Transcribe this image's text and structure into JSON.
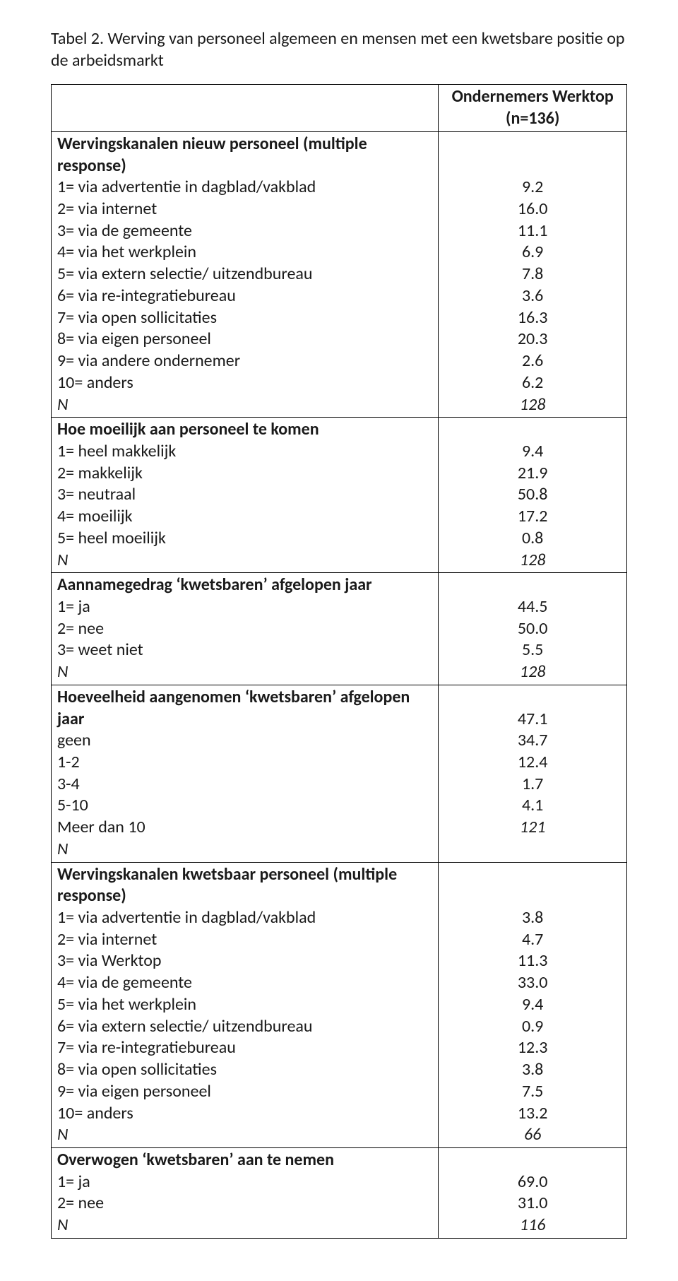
{
  "title": "Tabel 2. Werving van personeel algemeen en mensen met een kwetsbare positie op de arbeidsmarkt",
  "headerRight": "Ondernemers Werktop (n=136)",
  "sections": [
    {
      "head": "Wervingskanalen nieuw personeel (multiple response)",
      "rows": [
        {
          "label": "1= via advertentie in dagblad/vakblad",
          "value": "9.2"
        },
        {
          "label": "2= via internet",
          "value": "16.0"
        },
        {
          "label": "3= via de gemeente",
          "value": "11.1"
        },
        {
          "label": "4= via het werkplein",
          "value": "6.9"
        },
        {
          "label": "5= via extern selectie/ uitzendbureau",
          "value": "7.8"
        },
        {
          "label": "6= via re-integratiebureau",
          "value": "3.6"
        },
        {
          "label": "7= via open sollicitaties",
          "value": "16.3"
        },
        {
          "label": "8= via eigen personeel",
          "value": "20.3"
        },
        {
          "label": "9= via andere ondernemer",
          "value": "2.6"
        },
        {
          "label": "10= anders",
          "value": "6.2"
        },
        {
          "label": "N",
          "value": "128",
          "italic": true
        }
      ]
    },
    {
      "head": "Hoe moeilijk aan personeel te komen",
      "rows": [
        {
          "label": "1= heel makkelijk",
          "value": "9.4"
        },
        {
          "label": "2= makkelijk",
          "value": "21.9"
        },
        {
          "label": "3= neutraal",
          "value": "50.8"
        },
        {
          "label": "4= moeilijk",
          "value": "17.2"
        },
        {
          "label": "5= heel moeilijk",
          "value": "0.8"
        },
        {
          "label": "N",
          "value": "128",
          "italic": true
        }
      ]
    },
    {
      "head": "Aannamegedrag ‘kwetsbaren’ afgelopen jaar",
      "rows": [
        {
          "label": "1= ja",
          "value": "44.5"
        },
        {
          "label": "2= nee",
          "value": "50.0"
        },
        {
          "label": "3= weet niet",
          "value": "5.5"
        },
        {
          "label": "N",
          "value": "128",
          "italic": true
        }
      ]
    },
    {
      "head": "Hoeveelheid aangenomen ‘kwetsbaren’ afgelopen jaar",
      "rows": [
        {
          "label": "geen",
          "value": "47.1"
        },
        {
          "label": "1-2",
          "value": "34.7"
        },
        {
          "label": "3-4",
          "value": "12.4"
        },
        {
          "label": "5-10",
          "value": "1.7"
        },
        {
          "label": "Meer dan 10",
          "value": "4.1"
        },
        {
          "label": "N",
          "value": "121",
          "italic": true
        }
      ]
    },
    {
      "head": "Wervingskanalen kwetsbaar personeel (multiple response)",
      "rows": [
        {
          "label": "1= via advertentie in dagblad/vakblad",
          "value": "3.8"
        },
        {
          "label": "2= via internet",
          "value": "4.7"
        },
        {
          "label": "3= via Werktop",
          "value": "11.3"
        },
        {
          "label": "4= via de gemeente",
          "value": "33.0"
        },
        {
          "label": "5= via het werkplein",
          "value": "9.4"
        },
        {
          "label": "6= via extern selectie/ uitzendbureau",
          "value": "0.9"
        },
        {
          "label": "7= via re-integratiebureau",
          "value": "12.3"
        },
        {
          "label": "8= via open sollicitaties",
          "value": "3.8"
        },
        {
          "label": "9= via eigen personeel",
          "value": "7.5"
        },
        {
          "label": "10= anders",
          "value": "13.2"
        },
        {
          "label": "N",
          "value": "66",
          "italic": true
        }
      ]
    },
    {
      "head": "Overwogen ‘kwetsbaren’ aan te nemen",
      "rows": [
        {
          "label": "1= ja",
          "value": "69.0"
        },
        {
          "label": "2= nee",
          "value": "31.0"
        },
        {
          "label": "N",
          "value": "116",
          "italic": true
        }
      ]
    }
  ]
}
